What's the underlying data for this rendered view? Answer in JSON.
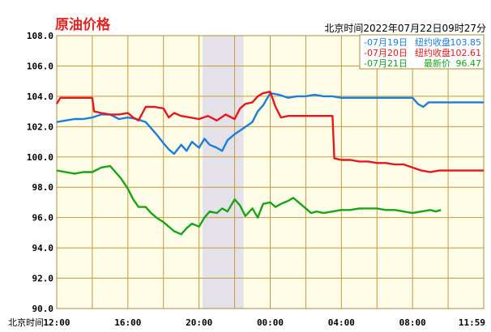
{
  "header": {
    "title": "原油价格",
    "time_text": "北京时间2022年07月22日09时27分"
  },
  "chart_data": {
    "type": "line",
    "xlabel": "北京时间",
    "x_ticks": [
      "12:00",
      "16:00",
      "20:00",
      "00:00",
      "04:00",
      "08:00",
      "11:59"
    ],
    "x_range_hours": [
      0,
      24
    ],
    "y_ticks": [
      "108.0",
      "106.0",
      "104.0",
      "102.0",
      "100.0",
      "98.0",
      "96.0",
      "94.0",
      "92.0",
      "90.0"
    ],
    "ylim": [
      90,
      108
    ],
    "shaded_region_hours": [
      8.2,
      10.5
    ],
    "grid": true,
    "legend_position": "top-right",
    "series": [
      {
        "name": "07月19日",
        "legend_label": "纽约收盘",
        "legend_value": "103.85",
        "color": "#1a7ddb",
        "points": [
          [
            0,
            102.3
          ],
          [
            0.5,
            102.4
          ],
          [
            1,
            102.5
          ],
          [
            1.5,
            102.5
          ],
          [
            2,
            102.6
          ],
          [
            2.5,
            102.8
          ],
          [
            3,
            102.8
          ],
          [
            3.5,
            102.5
          ],
          [
            4,
            102.6
          ],
          [
            4.5,
            102.5
          ],
          [
            5,
            102.3
          ],
          [
            5.3,
            101.9
          ],
          [
            5.6,
            101.5
          ],
          [
            6,
            100.9
          ],
          [
            6.3,
            100.5
          ],
          [
            6.6,
            100.2
          ],
          [
            7,
            100.8
          ],
          [
            7.3,
            100.4
          ],
          [
            7.6,
            101.0
          ],
          [
            8,
            100.6
          ],
          [
            8.3,
            101.2
          ],
          [
            8.6,
            100.8
          ],
          [
            9,
            100.6
          ],
          [
            9.3,
            100.4
          ],
          [
            9.6,
            101.1
          ],
          [
            10,
            101.5
          ],
          [
            10.5,
            101.9
          ],
          [
            11,
            102.3
          ],
          [
            11.3,
            103.0
          ],
          [
            11.6,
            103.4
          ],
          [
            12,
            104.2
          ],
          [
            12.5,
            104.1
          ],
          [
            13,
            103.9
          ],
          [
            13.5,
            104.0
          ],
          [
            14,
            104.0
          ],
          [
            14.5,
            104.1
          ],
          [
            15,
            104.0
          ],
          [
            15.5,
            104.0
          ],
          [
            16,
            103.9
          ],
          [
            16.5,
            103.9
          ],
          [
            17,
            103.9
          ],
          [
            17.5,
            103.9
          ],
          [
            18,
            103.9
          ],
          [
            18.5,
            103.9
          ],
          [
            19,
            103.9
          ],
          [
            19.5,
            103.9
          ],
          [
            20,
            103.9
          ],
          [
            20.3,
            103.5
          ],
          [
            20.6,
            103.3
          ],
          [
            20.9,
            103.6
          ],
          [
            21.5,
            103.6
          ],
          [
            22,
            103.6
          ],
          [
            23,
            103.6
          ],
          [
            24,
            103.6
          ]
        ]
      },
      {
        "name": "07月20日",
        "legend_label": "纽约收盘",
        "legend_value": "102.61",
        "color": "#e8151b",
        "points": [
          [
            0,
            103.5
          ],
          [
            0.2,
            103.9
          ],
          [
            0.6,
            103.9
          ],
          [
            1,
            103.9
          ],
          [
            1.5,
            103.9
          ],
          [
            2,
            103.9
          ],
          [
            2.1,
            103.0
          ],
          [
            2.5,
            102.9
          ],
          [
            3,
            102.8
          ],
          [
            3.5,
            102.8
          ],
          [
            4,
            102.9
          ],
          [
            4.3,
            102.6
          ],
          [
            4.6,
            102.4
          ],
          [
            5,
            103.3
          ],
          [
            5.5,
            103.3
          ],
          [
            6,
            103.2
          ],
          [
            6.3,
            102.6
          ],
          [
            6.6,
            102.9
          ],
          [
            7,
            102.7
          ],
          [
            7.5,
            102.6
          ],
          [
            8,
            102.5
          ],
          [
            8.5,
            102.7
          ],
          [
            9,
            102.4
          ],
          [
            9.5,
            102.8
          ],
          [
            10,
            102.5
          ],
          [
            10.3,
            103.2
          ],
          [
            10.6,
            103.5
          ],
          [
            11,
            103.6
          ],
          [
            11.3,
            104.0
          ],
          [
            11.6,
            104.2
          ],
          [
            12,
            104.3
          ],
          [
            12.3,
            103.3
          ],
          [
            12.6,
            102.6
          ],
          [
            13,
            102.7
          ],
          [
            13.5,
            102.7
          ],
          [
            14,
            102.7
          ],
          [
            14.5,
            102.7
          ],
          [
            15,
            102.7
          ],
          [
            15.5,
            102.7
          ],
          [
            15.6,
            99.9
          ],
          [
            16,
            99.8
          ],
          [
            16.5,
            99.8
          ],
          [
            17,
            99.7
          ],
          [
            17.5,
            99.7
          ],
          [
            18,
            99.6
          ],
          [
            18.5,
            99.6
          ],
          [
            19,
            99.5
          ],
          [
            19.5,
            99.5
          ],
          [
            20,
            99.3
          ],
          [
            20.5,
            99.1
          ],
          [
            21,
            99.0
          ],
          [
            21.5,
            99.1
          ],
          [
            22,
            99.1
          ],
          [
            23,
            99.1
          ],
          [
            24,
            99.1
          ]
        ]
      },
      {
        "name": "07月21日",
        "legend_label": "最新价",
        "legend_value": "96.47",
        "color": "#16a516",
        "points": [
          [
            0,
            99.1
          ],
          [
            0.5,
            99.0
          ],
          [
            1,
            98.9
          ],
          [
            1.5,
            99.0
          ],
          [
            2,
            99.0
          ],
          [
            2.5,
            99.3
          ],
          [
            3,
            99.4
          ],
          [
            3.3,
            99.0
          ],
          [
            3.6,
            98.6
          ],
          [
            4,
            97.9
          ],
          [
            4.3,
            97.2
          ],
          [
            4.6,
            96.7
          ],
          [
            5,
            96.7
          ],
          [
            5.3,
            96.3
          ],
          [
            5.6,
            96.0
          ],
          [
            6,
            95.7
          ],
          [
            6.3,
            95.4
          ],
          [
            6.6,
            95.1
          ],
          [
            7,
            94.9
          ],
          [
            7.3,
            95.3
          ],
          [
            7.6,
            95.6
          ],
          [
            8,
            95.4
          ],
          [
            8.3,
            96.0
          ],
          [
            8.6,
            96.4
          ],
          [
            9,
            96.3
          ],
          [
            9.3,
            96.6
          ],
          [
            9.6,
            96.4
          ],
          [
            10,
            97.2
          ],
          [
            10.3,
            96.8
          ],
          [
            10.6,
            96.1
          ],
          [
            11,
            96.6
          ],
          [
            11.3,
            96.0
          ],
          [
            11.6,
            96.9
          ],
          [
            12,
            97.0
          ],
          [
            12.3,
            96.7
          ],
          [
            12.6,
            96.9
          ],
          [
            13,
            97.1
          ],
          [
            13.3,
            97.3
          ],
          [
            13.6,
            97.0
          ],
          [
            14,
            96.6
          ],
          [
            14.3,
            96.3
          ],
          [
            14.6,
            96.4
          ],
          [
            15,
            96.3
          ],
          [
            15.5,
            96.4
          ],
          [
            16,
            96.5
          ],
          [
            16.5,
            96.5
          ],
          [
            17,
            96.6
          ],
          [
            17.5,
            96.6
          ],
          [
            18,
            96.6
          ],
          [
            18.5,
            96.5
          ],
          [
            19,
            96.5
          ],
          [
            19.5,
            96.4
          ],
          [
            20,
            96.3
          ],
          [
            20.5,
            96.4
          ],
          [
            21,
            96.5
          ],
          [
            21.3,
            96.4
          ],
          [
            21.6,
            96.5
          ]
        ]
      }
    ]
  }
}
